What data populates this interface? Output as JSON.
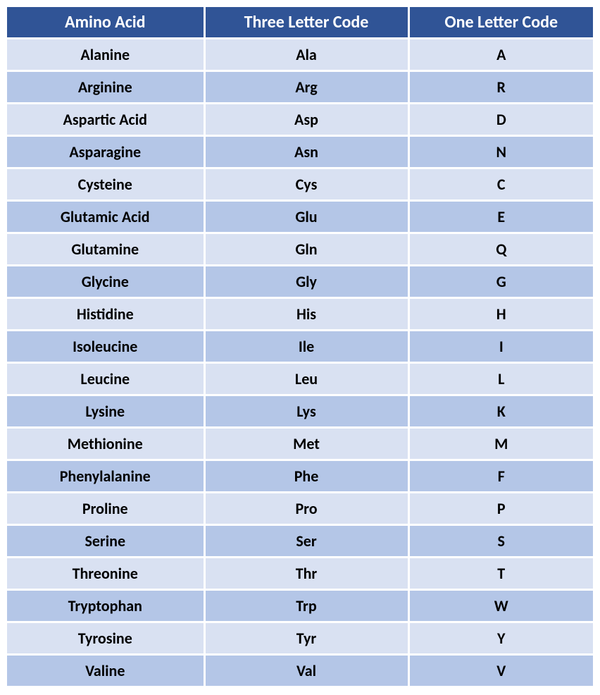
{
  "table": {
    "header_bg": "#305496",
    "header_fg": "#ffffff",
    "row_even_bg": "#d9e1f2",
    "row_odd_bg": "#b4c6e7",
    "cell_fg": "#000000",
    "columns": [
      "Amino Acid",
      "Three Letter Code",
      "One Letter Code"
    ],
    "rows": [
      [
        "Alanine",
        "Ala",
        "A"
      ],
      [
        "Arginine",
        "Arg",
        "R"
      ],
      [
        "Aspartic Acid",
        "Asp",
        "D"
      ],
      [
        "Asparagine",
        "Asn",
        "N"
      ],
      [
        "Cysteine",
        "Cys",
        "C"
      ],
      [
        "Glutamic Acid",
        "Glu",
        "E"
      ],
      [
        "Glutamine",
        "Gln",
        "Q"
      ],
      [
        "Glycine",
        "Gly",
        "G"
      ],
      [
        "Histidine",
        "His",
        "H"
      ],
      [
        "Isoleucine",
        "Ile",
        "I"
      ],
      [
        "Leucine",
        "Leu",
        "L"
      ],
      [
        "Lysine",
        "Lys",
        "K"
      ],
      [
        "Methionine",
        "Met",
        "M"
      ],
      [
        "Phenylalanine",
        "Phe",
        "F"
      ],
      [
        "Proline",
        "Pro",
        "P"
      ],
      [
        "Serine",
        "Ser",
        "S"
      ],
      [
        "Threonine",
        "Thr",
        "T"
      ],
      [
        "Tryptophan",
        "Trp",
        "W"
      ],
      [
        "Tyrosine",
        "Tyr",
        "Y"
      ],
      [
        "Valine",
        "Val",
        "V"
      ]
    ]
  }
}
